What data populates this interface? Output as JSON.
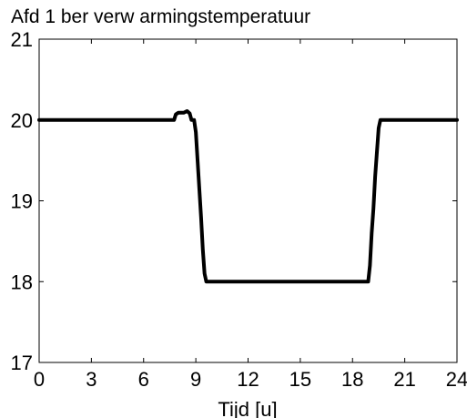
{
  "chart_data": {
    "type": "line",
    "title": "Afd 1 ber verw armingstemperatuur",
    "xlabel": "Tijd [u]",
    "ylabel": "",
    "xlim": [
      0,
      24
    ],
    "ylim": [
      17,
      21
    ],
    "xticks": [
      0,
      3,
      6,
      9,
      12,
      15,
      18,
      21,
      24
    ],
    "yticks": [
      17,
      18,
      19,
      20,
      21
    ],
    "grid": false,
    "line_color": "#000000",
    "series": [
      {
        "x": [
          0,
          7.75,
          7.85,
          8.0,
          8.3,
          8.5,
          8.65,
          8.75,
          8.9,
          9.0,
          9.1,
          9.2,
          9.3,
          9.4,
          9.5,
          9.6,
          9.75,
          10.0,
          12,
          15,
          18,
          18.9,
          19.0,
          19.1,
          19.2,
          19.3,
          19.4,
          19.5,
          19.6,
          21,
          24
        ],
        "y": [
          20,
          20,
          20.07,
          20.09,
          20.09,
          20.11,
          20.08,
          20.0,
          20.0,
          19.85,
          19.5,
          19.15,
          18.8,
          18.4,
          18.1,
          18.0,
          18.0,
          18.0,
          18.0,
          18.0,
          18.0,
          18.0,
          18.2,
          18.6,
          18.9,
          19.3,
          19.6,
          19.9,
          20.0,
          20.0,
          20.0
        ]
      }
    ]
  }
}
